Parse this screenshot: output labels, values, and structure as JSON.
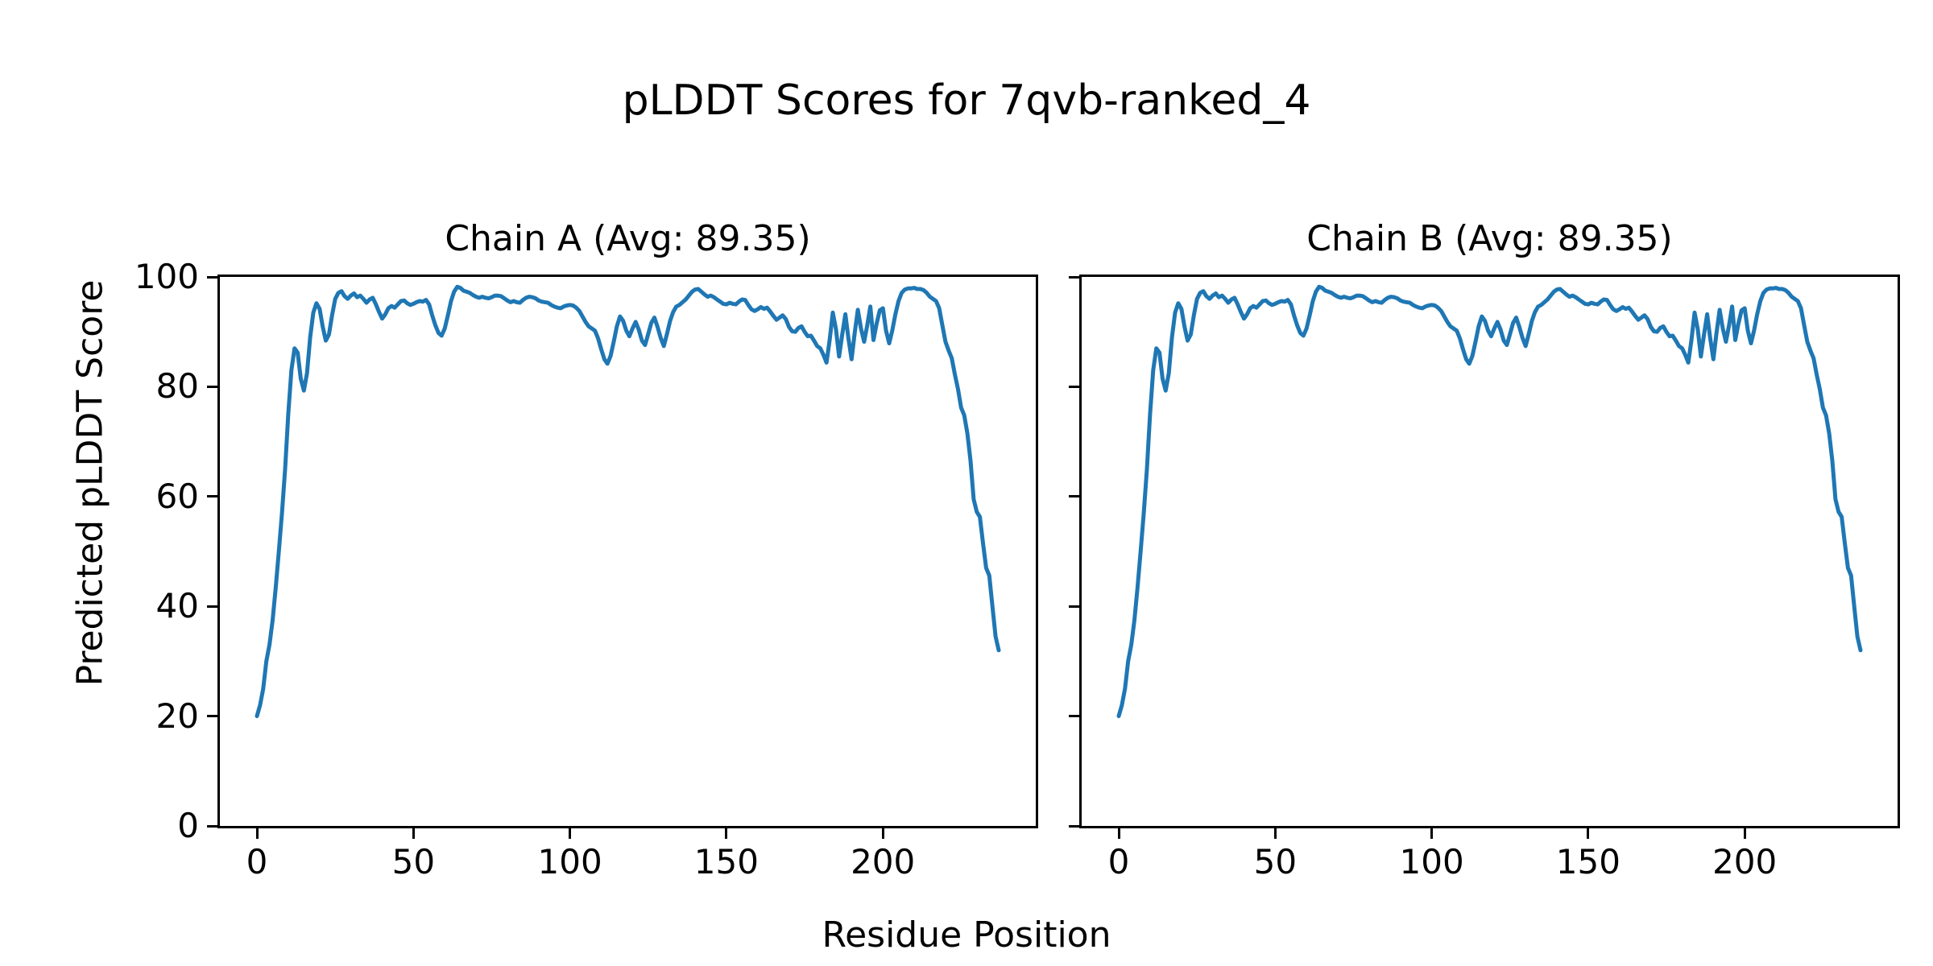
{
  "figure": {
    "suptitle": "pLDDT Scores for 7qvb-ranked_4",
    "xlabel": "Residue Position",
    "ylabel": "Predicted pLDDT Score"
  },
  "chart_data": {
    "type": "line",
    "title": "pLDDT Scores for 7qvb-ranked_4",
    "xlabel": "Residue Position",
    "ylabel": "Predicted pLDDT Score",
    "line_color": "#1f77b4",
    "grid": false,
    "legend": "none",
    "x_ticks": [
      0,
      50,
      100,
      150,
      200
    ],
    "y_ticks": [
      0,
      20,
      40,
      60,
      80,
      100
    ],
    "xlim": [
      -11.85,
      248.85
    ],
    "ylim": [
      0,
      100
    ],
    "x_is_index": true,
    "n_points": 238,
    "subplots": [
      {
        "title": "Chain A (Avg: 89.35)",
        "chain": "A",
        "avg": 89.35
      },
      {
        "title": "Chain B (Avg: 89.35)",
        "chain": "B",
        "avg": 89.35
      }
    ],
    "values": [
      20.0,
      22.0,
      25.0,
      30.0,
      33.0,
      37.5,
      43.5,
      50.0,
      57.0,
      65.0,
      75.0,
      83.0,
      87.0,
      86.2,
      81.5,
      79.3,
      82.5,
      89.0,
      93.5,
      95.2,
      94.2,
      91.0,
      88.4,
      89.5,
      93.0,
      96.0,
      97.1,
      97.4,
      96.5,
      96.0,
      96.6,
      97.0,
      96.3,
      96.6,
      96.0,
      95.3,
      95.9,
      96.2,
      95.0,
      93.6,
      92.4,
      93.2,
      94.3,
      94.7,
      94.4,
      95.0,
      95.6,
      95.7,
      95.2,
      94.9,
      95.1,
      95.4,
      95.6,
      95.5,
      95.8,
      95.0,
      93.0,
      91.2,
      89.8,
      89.3,
      90.6,
      93.0,
      95.6,
      97.3,
      98.2,
      98.0,
      97.5,
      97.3,
      97.1,
      96.7,
      96.4,
      96.2,
      96.4,
      96.2,
      96.1,
      96.3,
      96.6,
      96.6,
      96.5,
      96.1,
      95.7,
      95.4,
      95.6,
      95.4,
      95.3,
      95.8,
      96.2,
      96.4,
      96.3,
      96.1,
      95.7,
      95.5,
      95.4,
      95.3,
      94.9,
      94.6,
      94.4,
      94.3,
      94.6,
      94.8,
      94.9,
      94.8,
      94.4,
      93.8,
      92.8,
      91.8,
      91.0,
      90.6,
      90.2,
      88.8,
      86.8,
      85.0,
      84.2,
      85.6,
      88.2,
      91.0,
      92.8,
      92.0,
      90.2,
      89.2,
      90.6,
      91.8,
      90.4,
      88.4,
      87.6,
      89.6,
      91.6,
      92.6,
      90.9,
      88.9,
      87.4,
      89.6,
      92.0,
      93.6,
      94.6,
      94.9,
      95.4,
      95.9,
      96.6,
      97.3,
      97.7,
      97.8,
      97.3,
      96.8,
      96.4,
      96.6,
      96.3,
      95.9,
      95.5,
      95.1,
      95.0,
      95.3,
      95.1,
      95.0,
      95.5,
      95.9,
      95.8,
      94.9,
      94.1,
      93.8,
      94.1,
      94.5,
      94.2,
      94.4,
      93.7,
      92.9,
      92.2,
      92.6,
      93.0,
      92.3,
      90.9,
      90.1,
      90.0,
      90.7,
      91.0,
      90.0,
      89.2,
      89.3,
      88.4,
      87.4,
      87.0,
      85.8,
      84.4,
      88.5,
      93.5,
      90.5,
      85.5,
      89.5,
      93.2,
      88.8,
      85.0,
      89.8,
      94.0,
      90.6,
      88.2,
      91.2,
      94.6,
      88.5,
      91.5,
      93.9,
      94.3,
      90.2,
      87.9,
      90.2,
      93.2,
      95.6,
      97.1,
      97.7,
      97.9,
      97.9,
      98.0,
      97.8,
      97.8,
      97.6,
      97.1,
      96.4,
      96.0,
      95.6,
      94.3,
      91.2,
      88.2,
      86.6,
      85.2,
      82.2,
      79.6,
      76.2,
      74.8,
      71.5,
      66.5,
      59.5,
      57.2,
      56.3,
      51.5,
      47.0,
      45.6,
      40.0,
      34.5,
      32.0
    ]
  }
}
